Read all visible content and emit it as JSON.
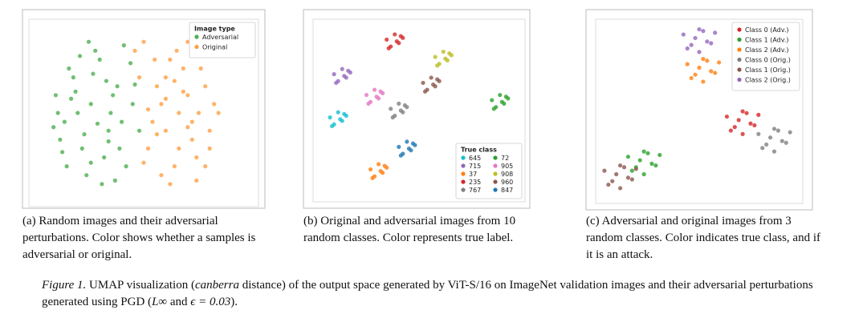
{
  "chart_data": [
    {
      "type": "scatter",
      "legend_title": "Image type",
      "legend": "upper right",
      "xlim": [
        0,
        100
      ],
      "ylim": [
        0,
        100
      ],
      "series": [
        {
          "name": "Adversarial",
          "color": "#4caf50",
          "x": [
            10,
            14,
            18,
            22,
            26,
            30,
            34,
            38,
            42,
            12,
            16,
            20,
            24,
            28,
            32,
            36,
            40,
            45,
            15,
            19,
            23,
            27,
            31,
            35,
            39,
            44,
            48,
            11,
            25,
            33,
            13,
            21,
            29,
            37,
            17,
            41,
            9,
            46,
            26,
            34
          ],
          "values": [
            60,
            45,
            70,
            30,
            55,
            80,
            40,
            65,
            20,
            35,
            75,
            50,
            15,
            85,
            25,
            60,
            45,
            55,
            20,
            62,
            38,
            72,
            10,
            50,
            30,
            78,
            40,
            50,
            90,
            68,
            28,
            82,
            44,
            12,
            58,
            88,
            42,
            66,
            22,
            34
          ]
        },
        {
          "name": "Original",
          "color": "#ff9f43",
          "x": [
            50,
            55,
            60,
            65,
            70,
            75,
            80,
            52,
            58,
            64,
            68,
            72,
            78,
            54,
            62,
            66,
            74,
            82,
            56,
            60,
            70,
            76,
            48,
            58,
            66,
            72,
            80,
            84,
            62,
            68,
            52,
            74,
            46,
            64,
            78,
            56,
            70,
            60,
            72,
            50
          ],
          "values": [
            90,
            80,
            70,
            85,
            60,
            50,
            40,
            30,
            55,
            20,
            75,
            35,
            65,
            45,
            10,
            50,
            25,
            55,
            65,
            40,
            90,
            75,
            70,
            15,
            30,
            45,
            30,
            50,
            80,
            62,
            52,
            12,
            85,
            68,
            20,
            38,
            42,
            58,
            85,
            22
          ]
        }
      ]
    },
    {
      "type": "scatter",
      "legend_title": "True class",
      "legend": "lower right",
      "xlim": [
        0,
        100
      ],
      "ylim": [
        0,
        100
      ],
      "series": [
        {
          "name": "645",
          "color": "#17becf",
          "x": [
            6,
            8,
            10,
            12,
            14,
            7,
            11,
            13
          ],
          "values": [
            46,
            42,
            49,
            44,
            47,
            41,
            45,
            48
          ]
        },
        {
          "name": "715",
          "color": "#9467bd",
          "x": [
            8,
            10,
            12,
            14,
            16,
            9,
            13,
            15
          ],
          "values": [
            71,
            67,
            74,
            69,
            72,
            66,
            70,
            73
          ]
        },
        {
          "name": "37",
          "color": "#ff7f0e",
          "x": [
            26,
            28,
            30,
            32,
            34,
            27,
            31,
            33
          ],
          "values": [
            16,
            12,
            19,
            14,
            17,
            11,
            15,
            18
          ]
        },
        {
          "name": "235",
          "color": "#d62728",
          "x": [
            34,
            36,
            38,
            40,
            42,
            35,
            39,
            41
          ],
          "values": [
            91,
            87,
            94,
            89,
            92,
            86,
            90,
            93
          ]
        },
        {
          "name": "767",
          "color": "#7f7f7f",
          "x": [
            36,
            38,
            40,
            42,
            44,
            37,
            41,
            43
          ],
          "values": [
            51,
            47,
            54,
            49,
            52,
            46,
            50,
            53
          ]
        },
        {
          "name": "72",
          "color": "#2ca02c",
          "x": [
            86,
            88,
            90,
            92,
            94,
            87,
            91,
            93
          ],
          "values": [
            56,
            52,
            59,
            54,
            57,
            51,
            55,
            58
          ]
        },
        {
          "name": "905",
          "color": "#e377c2",
          "x": [
            24,
            26,
            28,
            30,
            32,
            25,
            29,
            31
          ],
          "values": [
            59,
            55,
            62,
            57,
            60,
            54,
            58,
            61
          ]
        },
        {
          "name": "908",
          "color": "#bcbd22",
          "x": [
            58,
            60,
            62,
            64,
            66,
            59,
            63,
            65
          ],
          "values": [
            81,
            77,
            84,
            79,
            82,
            76,
            80,
            83
          ]
        },
        {
          "name": "960",
          "color": "#8c564b",
          "x": [
            52,
            54,
            56,
            58,
            60,
            53,
            57,
            59
          ],
          "values": [
            66,
            62,
            69,
            64,
            67,
            61,
            65,
            68
          ]
        },
        {
          "name": "847",
          "color": "#1f77b4",
          "x": [
            40,
            42,
            44,
            46,
            48,
            41,
            45,
            47
          ],
          "values": [
            29,
            25,
            32,
            27,
            30,
            24,
            28,
            31
          ]
        }
      ]
    },
    {
      "type": "scatter",
      "legend": "upper right",
      "xlim": [
        0,
        100
      ],
      "ylim": [
        0,
        100
      ],
      "series": [
        {
          "name": "Class 0 (Adv.)",
          "color": "#d62728",
          "x": [
            64,
            68,
            72,
            76,
            80,
            66,
            70,
            74,
            78,
            72
          ],
          "values": [
            47,
            41,
            50,
            43,
            48,
            39,
            45,
            49,
            42,
            37
          ]
        },
        {
          "name": "Class 1 (Adv.)",
          "color": "#2ca02c",
          "x": [
            14,
            18,
            22,
            26,
            30,
            16,
            20,
            24,
            28,
            22
          ],
          "values": [
            24,
            18,
            27,
            20,
            25,
            16,
            22,
            26,
            19,
            14
          ]
        },
        {
          "name": "Class 2 (Adv.)",
          "color": "#ff7f0e",
          "x": [
            44,
            48,
            52,
            56,
            60,
            46,
            50,
            54,
            58,
            52
          ],
          "values": [
            77,
            71,
            80,
            73,
            78,
            69,
            75,
            79,
            72,
            67
          ]
        },
        {
          "name": "Class 0 (Orig.)",
          "color": "#7f7f7f",
          "x": [
            80,
            84,
            88,
            92,
            96,
            82,
            86,
            90,
            94,
            88
          ],
          "values": [
            37,
            31,
            40,
            33,
            38,
            29,
            35,
            39,
            32,
            27
          ]
        },
        {
          "name": "Class 1 (Orig.)",
          "color": "#8c564b",
          "x": [
            2,
            6,
            10,
            14,
            18,
            4,
            8,
            12,
            16,
            10
          ],
          "values": [
            16,
            10,
            19,
            12,
            17,
            8,
            14,
            18,
            11,
            6
          ]
        },
        {
          "name": "Class 2 (Orig.)",
          "color": "#9467bd",
          "x": [
            42,
            46,
            50,
            54,
            58,
            44,
            48,
            52,
            56,
            50
          ],
          "values": [
            94,
            88,
            97,
            90,
            95,
            86,
            92,
            96,
            89,
            84
          ]
        }
      ]
    }
  ],
  "captions": [
    "(a) Random images and their adversarial perturbations. Color shows whether a samples is adversarial or original.",
    "(b) Original and adversarial images from 10 random classes. Color represents true label.",
    "(c) Adversarial and original images from 3 random classes. Color indicates true class, and if it is an attack."
  ],
  "figure_caption": {
    "label": "Figure 1.",
    "parts": [
      "UMAP visualization (",
      "canberra",
      " distance) of the output space generated by ViT-S/16 on ImageNet validation images and their adversarial perturbations generated using PGD (",
      "L∞",
      " and ",
      "ϵ = 0.03",
      ")."
    ]
  }
}
